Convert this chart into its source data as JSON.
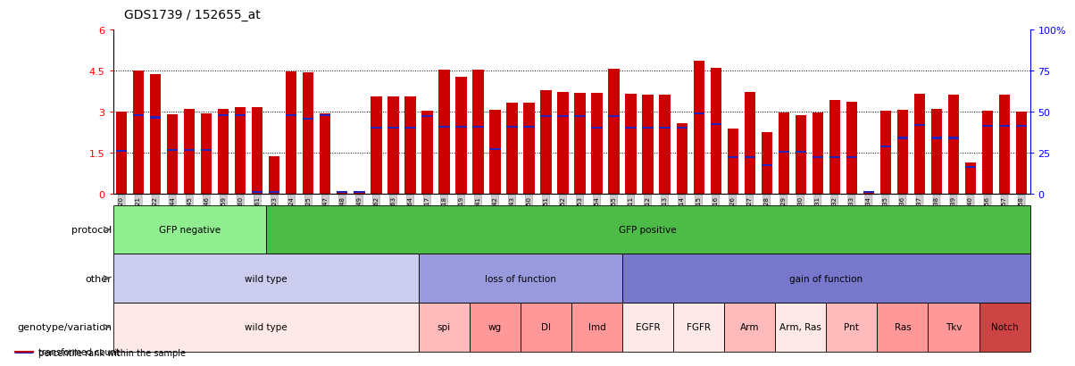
{
  "title": "GDS1739 / 152655_at",
  "samples": [
    "GSM88220",
    "GSM88221",
    "GSM88222",
    "GSM88244",
    "GSM88245",
    "GSM88246",
    "GSM88259",
    "GSM88260",
    "GSM88261",
    "GSM88223",
    "GSM88224",
    "GSM88225",
    "GSM88247",
    "GSM88248",
    "GSM88249",
    "GSM88262",
    "GSM88263",
    "GSM88264",
    "GSM88217",
    "GSM88218",
    "GSM88219",
    "GSM88241",
    "GSM88242",
    "GSM88243",
    "GSM88250",
    "GSM88251",
    "GSM88252",
    "GSM88253",
    "GSM88254",
    "GSM88255",
    "GSM88211",
    "GSM88212",
    "GSM88213",
    "GSM88214",
    "GSM88215",
    "GSM88216",
    "GSM88226",
    "GSM88227",
    "GSM88228",
    "GSM88229",
    "GSM88230",
    "GSM88231",
    "GSM88232",
    "GSM88233",
    "GSM88234",
    "GSM88235",
    "GSM88236",
    "GSM88237",
    "GSM88238",
    "GSM88239",
    "GSM88240",
    "GSM88256",
    "GSM88257",
    "GSM88258"
  ],
  "bar_heights": [
    3.02,
    4.52,
    4.38,
    2.92,
    3.1,
    2.96,
    3.12,
    3.17,
    3.18,
    1.38,
    4.48,
    4.45,
    2.93,
    0.12,
    0.12,
    3.55,
    3.55,
    3.55,
    3.03,
    4.55,
    4.28,
    4.55,
    3.08,
    3.35,
    3.35,
    3.78,
    3.72,
    3.68,
    3.68,
    4.58,
    3.65,
    3.62,
    3.62,
    2.58,
    4.88,
    4.62,
    2.38,
    3.72,
    2.25,
    2.98,
    2.88,
    2.98,
    3.42,
    3.38,
    0.08,
    3.05,
    3.08,
    3.65,
    3.12,
    3.62,
    1.15,
    3.05,
    3.62,
    3.02
  ],
  "blue_heights": [
    1.58,
    2.88,
    2.8,
    1.62,
    1.62,
    1.62,
    2.88,
    2.88,
    0.08,
    0.08,
    2.88,
    2.75,
    2.88,
    0.08,
    0.08,
    2.42,
    2.42,
    2.42,
    2.85,
    2.45,
    2.45,
    2.45,
    1.65,
    2.45,
    2.45,
    2.85,
    2.85,
    2.85,
    2.42,
    2.85,
    2.42,
    2.42,
    2.42,
    2.42,
    2.95,
    2.55,
    1.35,
    1.35,
    1.05,
    1.55,
    1.55,
    1.35,
    1.35,
    1.35,
    0.08,
    1.75,
    2.05,
    2.52,
    2.05,
    2.05,
    0.98,
    2.48,
    2.48,
    2.48
  ],
  "protocol_groups": [
    {
      "label": "GFP negative",
      "start": 0,
      "end": 9,
      "color": "#90EE90"
    },
    {
      "label": "GFP positive",
      "start": 9,
      "end": 54,
      "color": "#4CBB47"
    }
  ],
  "other_groups": [
    {
      "label": "wild type",
      "start": 0,
      "end": 18,
      "color": "#CCCCEE"
    },
    {
      "label": "loss of function",
      "start": 18,
      "end": 30,
      "color": "#9999DD"
    },
    {
      "label": "gain of function",
      "start": 30,
      "end": 54,
      "color": "#7777CC"
    }
  ],
  "genotype_groups": [
    {
      "label": "wild type",
      "start": 0,
      "end": 18,
      "color": "#FFE8E8"
    },
    {
      "label": "spi",
      "start": 18,
      "end": 21,
      "color": "#FFBBBB"
    },
    {
      "label": "wg",
      "start": 21,
      "end": 24,
      "color": "#FF9999"
    },
    {
      "label": "Dl",
      "start": 24,
      "end": 27,
      "color": "#FF9999"
    },
    {
      "label": "lmd",
      "start": 27,
      "end": 30,
      "color": "#FF9999"
    },
    {
      "label": "EGFR",
      "start": 30,
      "end": 33,
      "color": "#FFE8E8"
    },
    {
      "label": "FGFR",
      "start": 33,
      "end": 36,
      "color": "#FFE8E8"
    },
    {
      "label": "Arm",
      "start": 36,
      "end": 39,
      "color": "#FFBBBB"
    },
    {
      "label": "Arm, Ras",
      "start": 39,
      "end": 42,
      "color": "#FFE8E8"
    },
    {
      "label": "Pnt",
      "start": 42,
      "end": 45,
      "color": "#FFBBBB"
    },
    {
      "label": "Ras",
      "start": 45,
      "end": 48,
      "color": "#FF9999"
    },
    {
      "label": "Tkv",
      "start": 48,
      "end": 51,
      "color": "#FF9999"
    },
    {
      "label": "Notch",
      "start": 51,
      "end": 54,
      "color": "#CC4444"
    }
  ],
  "ylim": [
    0,
    6
  ],
  "yticks_left": [
    0,
    1.5,
    3.0,
    4.5,
    6.0
  ],
  "ytick_labels_left": [
    "0",
    "1.5",
    "3",
    "4.5",
    "6"
  ],
  "yticks_right_pct": [
    0,
    25,
    50,
    75,
    100
  ],
  "ytick_labels_right": [
    "0",
    "25",
    "50",
    "75",
    "100%"
  ],
  "bar_color": "#CC0000",
  "blue_color": "#2222BB",
  "row_labels": [
    "protocol",
    "other",
    "genotype/variation"
  ],
  "legend_red": "transformed count",
  "legend_blue": "percentile rank within the sample"
}
